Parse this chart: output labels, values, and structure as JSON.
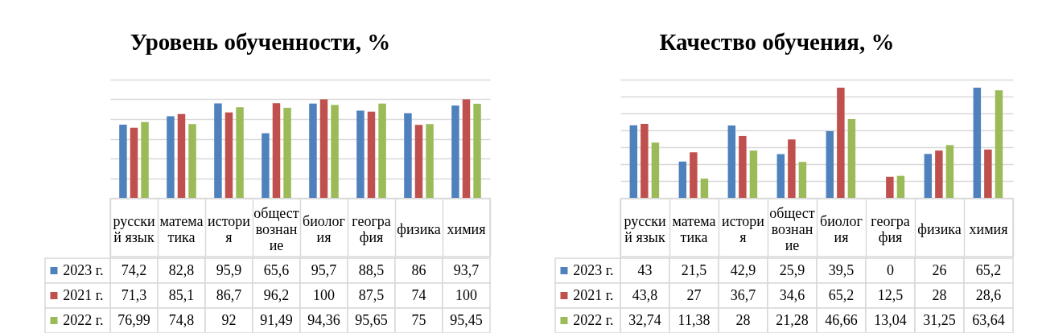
{
  "chart_data": [
    {
      "type": "bar",
      "title": "Уровень обученности, %",
      "categories": [
        "русский язык",
        "математика",
        "история",
        "обществознание",
        "биология",
        "география",
        "физика",
        "химия"
      ],
      "series": [
        {
          "name": "2023 г.",
          "color": "#4f81bd",
          "values": [
            74.2,
            82.8,
            95.9,
            65.6,
            95.7,
            88.5,
            86,
            93.7
          ],
          "value_labels": [
            "74,2",
            "82,8",
            "95,9",
            "65,6",
            "95,7",
            "88,5",
            "86",
            "93,7"
          ]
        },
        {
          "name": "2021 г.",
          "color": "#c0504d",
          "values": [
            71.3,
            85.1,
            86.7,
            96.2,
            100,
            87.5,
            74,
            100
          ],
          "value_labels": [
            "71,3",
            "85,1",
            "86,7",
            "96,2",
            "100",
            "87,5",
            "74",
            "100"
          ]
        },
        {
          "name": "2022 г.",
          "color": "#9bbb59",
          "values": [
            76.99,
            74.8,
            92,
            91.49,
            94.36,
            95.65,
            75,
            95.45
          ],
          "value_labels": [
            "76,99",
            "74,8",
            "92",
            "91,49",
            "94,36",
            "95,65",
            "75",
            "95,45"
          ]
        }
      ],
      "ylim": [
        0,
        120
      ],
      "yticks": [
        {
          "value": 0,
          "label": null
        },
        {
          "value": 20,
          "label": null
        },
        {
          "value": 40,
          "label": null
        },
        {
          "value": 60,
          "label": null
        },
        {
          "value": 80,
          "label": null
        },
        {
          "value": 100,
          "label": null
        },
        {
          "value": 120,
          "label": null
        }
      ],
      "grid": "y",
      "tick_labels": "x",
      "legend": "bottom left"
    },
    {
      "type": "bar",
      "title": "Качество обучения, %",
      "categories": [
        "русский язык",
        "математика",
        "история",
        "обществознание",
        "биология",
        "география",
        "физика",
        "химия"
      ],
      "series": [
        {
          "name": "2023 г.",
          "color": "#4f81bd",
          "values": [
            43,
            21.5,
            42.9,
            25.9,
            39.5,
            0,
            26,
            65.2
          ],
          "value_labels": [
            "43",
            "21,5",
            "42,9",
            "25,9",
            "39,5",
            "0",
            "26",
            "65,2"
          ]
        },
        {
          "name": "2021 г.",
          "color": "#c0504d",
          "values": [
            43.8,
            27,
            36.7,
            34.6,
            65.2,
            12.5,
            28,
            28.6
          ],
          "value_labels": [
            "43,8",
            "27",
            "36,7",
            "34,6",
            "65,2",
            "12,5",
            "28",
            "28,6"
          ]
        },
        {
          "name": "2022 г.",
          "color": "#9bbb59",
          "values": [
            32.74,
            11.38,
            28,
            21.28,
            46.66,
            13.04,
            31.25,
            63.64
          ],
          "value_labels": [
            "32,74",
            "11,38",
            "28",
            "21,28",
            "46,66",
            "13,04",
            "31,25",
            "63,64"
          ]
        }
      ],
      "ylim": [
        0,
        70
      ],
      "yticks": [
        {
          "value": 0,
          "label": null
        },
        {
          "value": 10,
          "label": null
        },
        {
          "value": 20,
          "label": null
        },
        {
          "value": 30,
          "label": null
        },
        {
          "value": 40,
          "label": null
        },
        {
          "value": 50,
          "label": null
        },
        {
          "value": 60,
          "label": null
        },
        {
          "value": 70,
          "label": null
        }
      ],
      "grid": "y",
      "tick_labels": "x",
      "legend": "bottom left"
    }
  ]
}
